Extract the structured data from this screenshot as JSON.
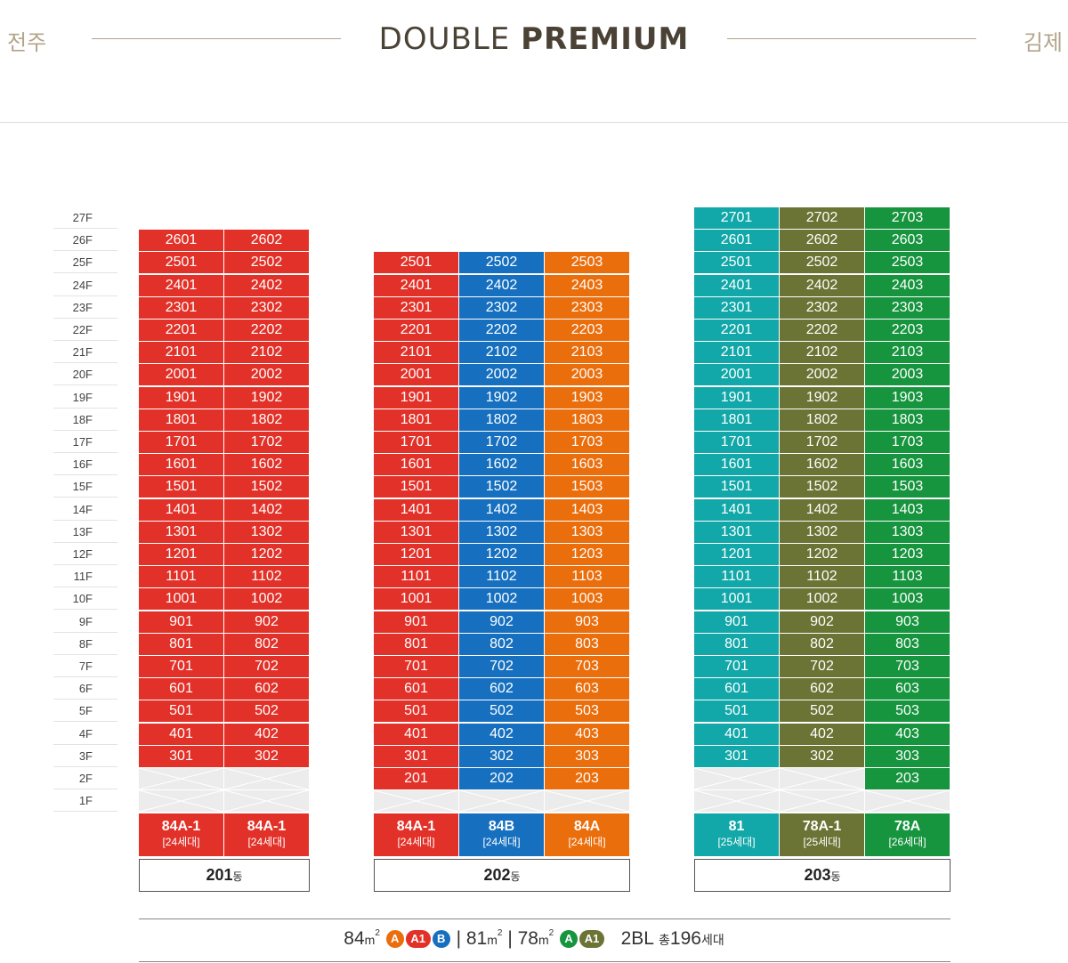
{
  "header": {
    "left_city": "전주",
    "right_city": "김제",
    "title_light": "DOUBLE",
    "title_bold": "PREMIUM"
  },
  "floors": [
    "27F",
    "26F",
    "25F",
    "24F",
    "23F",
    "22F",
    "21F",
    "20F",
    "19F",
    "18F",
    "17F",
    "16F",
    "15F",
    "14F",
    "13F",
    "12F",
    "11F",
    "10F",
    "9F",
    "8F",
    "7F",
    "6F",
    "5F",
    "4F",
    "3F",
    "2F",
    "1F"
  ],
  "colors": {
    "red": "#e23128",
    "blue": "#1670bf",
    "orange": "#eb6e0d",
    "teal": "#12a7a8",
    "olive": "#6b7434",
    "green": "#16943e",
    "empty": "#ececec"
  },
  "buildings": [
    {
      "name": "201",
      "suffix": "동",
      "columns": [
        {
          "unit": "01",
          "type": "84A-1",
          "households": "[24세대]",
          "color": "red",
          "top_floor": 26,
          "empty_floors": [
            2,
            1
          ],
          "start_floor": 3
        },
        {
          "unit": "02",
          "type": "84A-1",
          "households": "[24세대]",
          "color": "red",
          "top_floor": 26,
          "empty_floors": [
            2,
            1
          ],
          "start_floor": 3
        }
      ]
    },
    {
      "name": "202",
      "suffix": "동",
      "columns": [
        {
          "unit": "01",
          "type": "84A-1",
          "households": "[24세대]",
          "color": "red",
          "top_floor": 25,
          "empty_floors": [
            1
          ],
          "start_floor": 2
        },
        {
          "unit": "02",
          "type": "84B",
          "households": "[24세대]",
          "color": "blue",
          "top_floor": 25,
          "empty_floors": [
            1
          ],
          "start_floor": 2
        },
        {
          "unit": "03",
          "type": "84A",
          "households": "[24세대]",
          "color": "orange",
          "top_floor": 25,
          "empty_floors": [
            1
          ],
          "start_floor": 2
        }
      ]
    },
    {
      "name": "203",
      "suffix": "동",
      "columns": [
        {
          "unit": "01",
          "type": "81",
          "households": "[25세대]",
          "color": "teal",
          "top_floor": 27,
          "empty_floors": [
            2,
            1
          ],
          "start_floor": 3
        },
        {
          "unit": "02",
          "type": "78A-1",
          "households": "[25세대]",
          "color": "olive",
          "top_floor": 27,
          "empty_floors": [
            2,
            1
          ],
          "start_floor": 3
        },
        {
          "unit": "03",
          "type": "78A",
          "households": "[26세대]",
          "color": "green",
          "top_floor": 27,
          "empty_floors": [
            1
          ],
          "start_floor": 2
        }
      ]
    }
  ],
  "legend": {
    "size84": "84",
    "size81": "81",
    "size78": "78",
    "unit": "m",
    "sup": "2",
    "sep": "|",
    "badges84": [
      {
        "label": "A",
        "color": "#eb6e0d"
      },
      {
        "label": "A1",
        "color": "#e23128"
      },
      {
        "label": "B",
        "color": "#1670bf"
      }
    ],
    "badges78": [
      {
        "label": "A",
        "color": "#16943e"
      },
      {
        "label": "A1",
        "color": "#6b7434"
      }
    ],
    "block": "2BL",
    "total_prefix": "총",
    "total": "196",
    "total_suffix": "세대"
  }
}
